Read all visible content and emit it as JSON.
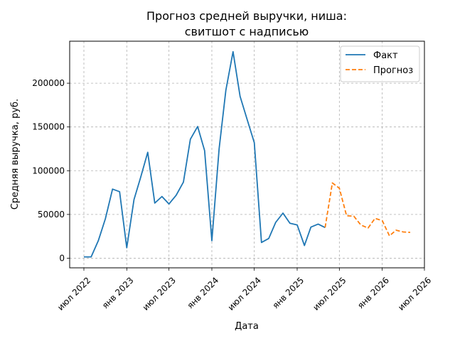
{
  "chart_data": {
    "type": "line",
    "title_lines": [
      "Прогноз средней выручки, ниша:",
      "свитшот с надписью"
    ],
    "xlabel": "Дата",
    "ylabel": "Средняя выручка, руб.",
    "x_ticks": [
      {
        "date": "2022-07-01",
        "label": "июл 2022"
      },
      {
        "date": "2023-01-01",
        "label": "янв 2023"
      },
      {
        "date": "2023-07-01",
        "label": "июл 2023"
      },
      {
        "date": "2024-01-01",
        "label": "янв 2024"
      },
      {
        "date": "2024-07-01",
        "label": "июл 2024"
      },
      {
        "date": "2025-01-01",
        "label": "янв 2025"
      },
      {
        "date": "2025-07-01",
        "label": "июл 2025"
      },
      {
        "date": "2026-01-01",
        "label": "янв 2026"
      },
      {
        "date": "2026-07-01",
        "label": "июл 2026"
      }
    ],
    "y_ticks": [
      {
        "value": 0,
        "label": "0"
      },
      {
        "value": 50000,
        "label": "50000"
      },
      {
        "value": 100000,
        "label": "100000"
      },
      {
        "value": 150000,
        "label": "150000"
      },
      {
        "value": 200000,
        "label": "200000"
      }
    ],
    "xlim": [
      "2022-05-01",
      "2026-07-01"
    ],
    "ylim": [
      -11000,
      248000
    ],
    "grid": true,
    "legend_position": "top-right",
    "series": [
      {
        "name": "Факт",
        "color": "#1f77b4",
        "style": "solid",
        "points": [
          {
            "x": "2022-07-01",
            "y": 1500
          },
          {
            "x": "2022-08-01",
            "y": 1500
          },
          {
            "x": "2022-09-01",
            "y": 20000
          },
          {
            "x": "2022-10-01",
            "y": 45000
          },
          {
            "x": "2022-11-01",
            "y": 79000
          },
          {
            "x": "2022-12-01",
            "y": 76000
          },
          {
            "x": "2023-01-01",
            "y": 12000
          },
          {
            "x": "2023-02-01",
            "y": 67000
          },
          {
            "x": "2023-03-01",
            "y": 92000
          },
          {
            "x": "2023-04-01",
            "y": 121000
          },
          {
            "x": "2023-05-01",
            "y": 63000
          },
          {
            "x": "2023-06-01",
            "y": 70500
          },
          {
            "x": "2023-07-01",
            "y": 62000
          },
          {
            "x": "2023-08-01",
            "y": 72000
          },
          {
            "x": "2023-09-01",
            "y": 87000
          },
          {
            "x": "2023-10-01",
            "y": 136000
          },
          {
            "x": "2023-11-01",
            "y": 150500
          },
          {
            "x": "2023-12-01",
            "y": 123000
          },
          {
            "x": "2024-01-01",
            "y": 20000
          },
          {
            "x": "2024-02-01",
            "y": 125000
          },
          {
            "x": "2024-03-01",
            "y": 192000
          },
          {
            "x": "2024-04-01",
            "y": 236000
          },
          {
            "x": "2024-05-01",
            "y": 185000
          },
          {
            "x": "2024-06-01",
            "y": 158000
          },
          {
            "x": "2024-07-01",
            "y": 132000
          },
          {
            "x": "2024-08-01",
            "y": 18000
          },
          {
            "x": "2024-09-01",
            "y": 22500
          },
          {
            "x": "2024-10-01",
            "y": 41000
          },
          {
            "x": "2024-11-01",
            "y": 51500
          },
          {
            "x": "2024-12-01",
            "y": 40000
          },
          {
            "x": "2025-01-01",
            "y": 38000
          },
          {
            "x": "2025-02-01",
            "y": 14500
          },
          {
            "x": "2025-03-01",
            "y": 35500
          },
          {
            "x": "2025-04-01",
            "y": 39000
          },
          {
            "x": "2025-05-01",
            "y": 35000
          }
        ]
      },
      {
        "name": "Прогноз",
        "color": "#ff7f0e",
        "style": "dashed",
        "points": [
          {
            "x": "2025-05-01",
            "y": 35000
          },
          {
            "x": "2025-06-01",
            "y": 86000
          },
          {
            "x": "2025-07-01",
            "y": 80000
          },
          {
            "x": "2025-08-01",
            "y": 48500
          },
          {
            "x": "2025-09-01",
            "y": 48000
          },
          {
            "x": "2025-10-01",
            "y": 38000
          },
          {
            "x": "2025-11-01",
            "y": 34500
          },
          {
            "x": "2025-12-01",
            "y": 45500
          },
          {
            "x": "2026-01-01",
            "y": 43000
          },
          {
            "x": "2026-02-01",
            "y": 25500
          },
          {
            "x": "2026-03-01",
            "y": 32000
          },
          {
            "x": "2026-04-01",
            "y": 30000
          },
          {
            "x": "2026-05-01",
            "y": 29500
          }
        ]
      }
    ]
  }
}
